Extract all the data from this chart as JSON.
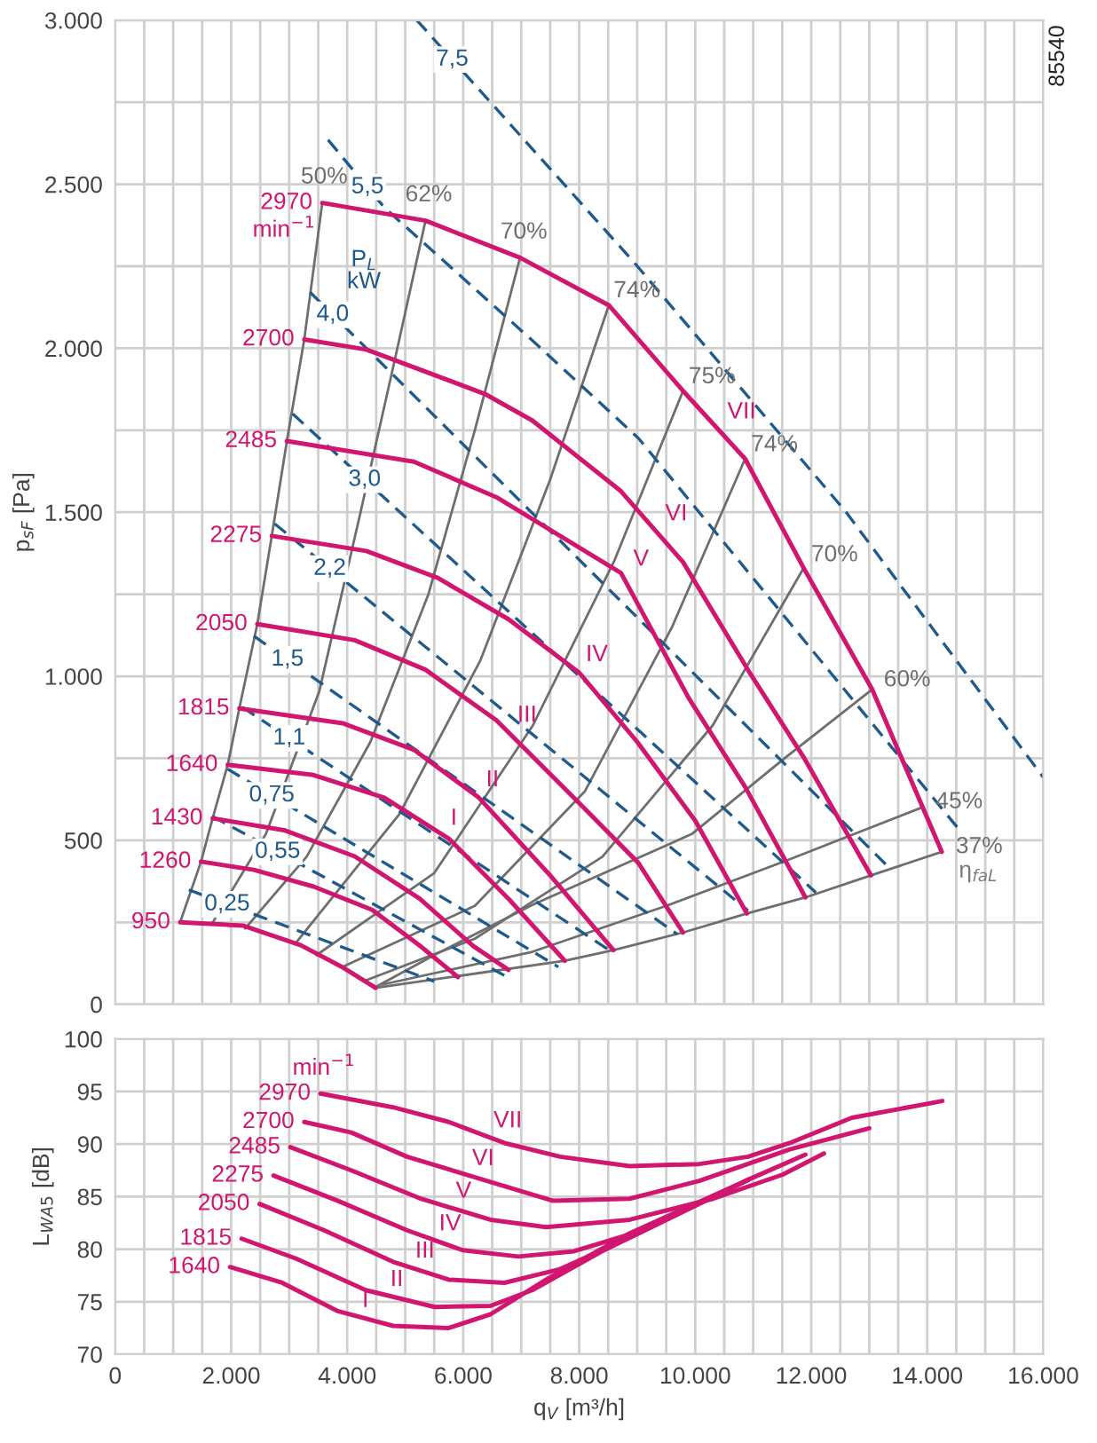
{
  "chart_data": [
    {
      "type": "line",
      "ylabel": "p$_{sF}$ [Pa]",
      "xlim": [
        0,
        16000
      ],
      "ylim": [
        0,
        3000
      ],
      "grid": true,
      "tick_labels": "y",
      "xticks": [
        {
          "value": 0,
          "label": null
        },
        {
          "value": 500,
          "label": null
        },
        {
          "value": 1000,
          "label": null
        },
        {
          "value": 1500,
          "label": null
        },
        {
          "value": 2000,
          "label": null
        },
        {
          "value": 2500,
          "label": null
        },
        {
          "value": 3000,
          "label": null
        },
        {
          "value": 3500,
          "label": null
        },
        {
          "value": 4000,
          "label": null
        },
        {
          "value": 4500,
          "label": null
        },
        {
          "value": 5000,
          "label": null
        },
        {
          "value": 5500,
          "label": null
        },
        {
          "value": 6000,
          "label": null
        },
        {
          "value": 6500,
          "label": null
        },
        {
          "value": 7000,
          "label": null
        },
        {
          "value": 7500,
          "label": null
        },
        {
          "value": 8000,
          "label": null
        },
        {
          "value": 8500,
          "label": null
        },
        {
          "value": 9000,
          "label": null
        },
        {
          "value": 9500,
          "label": null
        },
        {
          "value": 10000,
          "label": null
        },
        {
          "value": 10500,
          "label": null
        },
        {
          "value": 11000,
          "label": null
        },
        {
          "value": 11500,
          "label": null
        },
        {
          "value": 12000,
          "label": null
        },
        {
          "value": 12500,
          "label": null
        },
        {
          "value": 13000,
          "label": null
        },
        {
          "value": 13500,
          "label": null
        },
        {
          "value": 14000,
          "label": null
        },
        {
          "value": 14500,
          "label": null
        },
        {
          "value": 15000,
          "label": null
        },
        {
          "value": 15500,
          "label": null
        },
        {
          "value": 16000,
          "label": null
        }
      ],
      "yticks": [
        0,
        {
          "value": 250,
          "label": null
        },
        {
          "value": 500,
          "label": "500"
        },
        {
          "value": 750,
          "label": null
        },
        {
          "value": 1000,
          "label": "1.000"
        },
        {
          "value": 1250,
          "label": null
        },
        {
          "value": 1500,
          "label": "1.500"
        },
        {
          "value": 1750,
          "label": null
        },
        {
          "value": 2000,
          "label": "2.000"
        },
        {
          "value": 2250,
          "label": null
        },
        {
          "value": 2500,
          "label": "2.500"
        },
        {
          "value": 2750,
          "label": null
        },
        {
          "value": 3000,
          "label": "3.000"
        }
      ],
      "series": [
        {
          "name": "50%",
          "color": "#6e6e6e",
          "x": [
            1120,
            1480,
            1680,
            1940,
            2140,
            2450,
            2700,
            2960,
            3260,
            3570
          ],
          "values": [
            250,
            435,
            567,
            730,
            902,
            1159,
            1428,
            1717,
            2027,
            2443
          ]
        },
        {
          "name": "62%",
          "color": "#6e6e6e",
          "x": [
            1680,
            2600,
            3520,
            4230,
            4840,
            5350
          ],
          "values": [
            249,
            520,
            955,
            1500,
            1980,
            2389
          ]
        },
        {
          "name": "70%",
          "color": "#6e6e6e",
          "x": [
            2240,
            3300,
            4400,
            5400,
            6200,
            6980
          ],
          "values": [
            231,
            450,
            800,
            1250,
            1750,
            2276
          ]
        },
        {
          "name": "74%",
          "color": "#6e6e6e",
          "x": [
            3110,
            4900,
            6300,
            7500,
            8510
          ],
          "values": [
            186,
            580,
            1050,
            1600,
            2131
          ]
        },
        {
          "name": "75%",
          "color": "#6e6e6e",
          "x": [
            3470,
            5500,
            7200,
            8600,
            9790
          ],
          "values": [
            150,
            400,
            850,
            1350,
            1870
          ]
        },
        {
          "name": "74%",
          "color": "#6e6e6e",
          "x": [
            3920,
            6200,
            8100,
            9600,
            10860
          ],
          "values": [
            114,
            300,
            650,
            1150,
            1663
          ]
        },
        {
          "name": "70%",
          "color": "#6e6e6e",
          "x": [
            4280,
            6200,
            8400,
            10300,
            11870
          ],
          "values": [
            70,
            200,
            450,
            850,
            1330
          ]
        },
        {
          "name": "60%",
          "color": "#6e6e6e",
          "x": [
            4460,
            5500,
            7190,
            9940,
            11560,
            13050
          ],
          "values": [
            50,
            150,
            303,
            519,
            753,
            960
          ]
        },
        {
          "name": "45%",
          "color": "#6e6e6e",
          "x": [
            4600,
            7190,
            9500,
            11600,
            13910
          ],
          "values": [
            60,
            160,
            300,
            440,
            600
          ]
        },
        {
          "name": "37%",
          "color": "#6e6e6e",
          "x": [
            4490,
            7750,
            8590,
            9790,
            10890,
            11900,
            13030,
            14250
          ],
          "values": [
            50,
            133,
            165,
            219,
            277,
            326,
            393,
            465
          ]
        },
        {
          "name": "7,5",
          "color": "#1f5a8a",
          "line_style": "dashed",
          "x": [
            5200,
            5810,
            8920,
            12590,
            16000
          ],
          "values": [
            3000,
            2880,
            2267,
            1503,
            692
          ]
        },
        {
          "name": "5,5",
          "color": "#1f5a8a",
          "line_style": "dashed",
          "x": [
            3670,
            4350,
            4640,
            7190,
            9020,
            14530
          ],
          "values": [
            2635,
            2491,
            2429,
            2024,
            1726,
            537
          ]
        },
        {
          "name": "4,0",
          "color": "#1f5a8a",
          "line_style": "dashed",
          "x": [
            3360,
            3750,
            13300
          ],
          "values": [
            2171,
            2102,
            424
          ]
        },
        {
          "name": "3,0",
          "color": "#1f5a8a",
          "line_style": "dashed",
          "x": [
            3060,
            4300,
            12080
          ],
          "values": [
            1800,
            1599,
            341
          ]
        },
        {
          "name": "2,2",
          "color": "#1f5a8a",
          "line_style": "dashed",
          "x": [
            2750,
            3700,
            10910
          ],
          "values": [
            1465,
            1328,
            286
          ]
        },
        {
          "name": "1,5",
          "color": "#1f5a8a",
          "line_style": "dashed",
          "x": [
            2390,
            2970,
            9690
          ],
          "values": [
            1123,
            1051,
            214
          ]
        },
        {
          "name": "1,1",
          "color": "#1f5a8a",
          "line_style": "dashed",
          "x": [
            2190,
            3000,
            8560
          ],
          "values": [
            906,
            811,
            160
          ]
        },
        {
          "name": "0,75",
          "color": "#1f5a8a",
          "line_style": "dashed",
          "x": [
            1940,
            2700,
            7640
          ],
          "values": [
            717,
            637,
            114
          ]
        },
        {
          "name": "0,55",
          "color": "#1f5a8a",
          "line_style": "dashed",
          "x": [
            1680,
            2800,
            6730
          ],
          "values": [
            573,
            465,
            86
          ]
        },
        {
          "name": "0,25",
          "color": "#1f5a8a",
          "line_style": "dashed",
          "x": [
            1270,
            1930,
            5500
          ],
          "values": [
            349,
            305,
            70
          ]
        },
        {
          "name": "950",
          "color": "#d1166f",
          "x": [
            1120,
            2200,
            3200,
            3900,
            4490
          ],
          "values": [
            250,
            240,
            180,
            115,
            50
          ]
        },
        {
          "name": "1260",
          "color": "#d1166f",
          "x": [
            1480,
            2390,
            3420,
            4430,
            5250,
            5910
          ],
          "values": [
            435,
            410,
            359,
            288,
            179,
            83
          ]
        },
        {
          "name": "1430",
          "color": "#d1166f",
          "x": [
            1680,
            2910,
            4130,
            5250,
            6170,
            6780
          ],
          "values": [
            567,
            531,
            451,
            322,
            178,
            105
          ]
        },
        {
          "name": "1640",
          "color": "#d1166f",
          "x": [
            1940,
            3420,
            4640,
            5760,
            6780,
            7750
          ],
          "values": [
            730,
            699,
            630,
            504,
            322,
            133
          ]
        },
        {
          "name": "1815",
          "color": "#d1166f",
          "x": [
            2140,
            3920,
            5150,
            6270,
            7490,
            8590
          ],
          "values": [
            902,
            857,
            776,
            630,
            395,
            165
          ]
        },
        {
          "name": "2050",
          "color": "#d1166f",
          "x": [
            2450,
            4130,
            5350,
            6570,
            8000,
            9020,
            9790
          ],
          "values": [
            1159,
            1110,
            1020,
            866,
            613,
            431,
            219
          ]
        },
        {
          "name": "2275",
          "color": "#d1166f",
          "x": [
            2700,
            4330,
            5560,
            6780,
            8000,
            9000,
            10000,
            10890
          ],
          "values": [
            1428,
            1382,
            1300,
            1174,
            1011,
            800,
            560,
            277
          ]
        },
        {
          "name": "2485",
          "color": "#d1166f",
          "x": [
            2960,
            5150,
            6570,
            8720,
            9890,
            10860,
            11900
          ],
          "values": [
            1717,
            1654,
            1546,
            1315,
            933,
            663,
            326
          ]
        },
        {
          "name": "2700",
          "color": "#d1166f",
          "x": [
            3260,
            4330,
            6370,
            7190,
            8720,
            9790,
            10960,
            11870,
            13030
          ],
          "values": [
            2027,
            1996,
            1861,
            1780,
            1564,
            1348,
            1005,
            753,
            393
          ]
        },
        {
          "name": "2970",
          "color": "#d1166f",
          "x": [
            3570,
            5350,
            6980,
            8510,
            9790,
            10860,
            11870,
            13050,
            14250
          ],
          "values": [
            2443,
            2389,
            2276,
            2131,
            1870,
            1663,
            1330,
            960,
            465
          ]
        }
      ],
      "annotations": [
        "85540",
        "min$^{−1}$",
        "P$_{L}$\nkW",
        "η$_{faL}$",
        {
          "text": "I",
          "x": 5570,
          "y": 525
        },
        {
          "text": "II",
          "x": 6180,
          "y": 642
        },
        {
          "text": "III",
          "x": 6720,
          "y": 839
        },
        {
          "text": "IV",
          "x": 7900,
          "y": 1024
        },
        {
          "text": "V",
          "x": 8720,
          "y": 1315
        },
        {
          "text": "VI",
          "x": 9270,
          "y": 1453
        },
        {
          "text": "VII",
          "x": 10340,
          "y": 1764
        }
      ]
    },
    {
      "type": "line",
      "xlabel": "q$_{V}$ [m³/h]",
      "ylabel": "L$_{WA5}$ [dB]",
      "xlim": [
        0,
        16000
      ],
      "ylim": [
        70,
        100
      ],
      "grid": true,
      "xticks": [
        0,
        {
          "value": 500,
          "label": null
        },
        {
          "value": 1000,
          "label": null
        },
        {
          "value": 1500,
          "label": null
        },
        {
          "value": 2000,
          "label": "2.000"
        },
        {
          "value": 2500,
          "label": null
        },
        {
          "value": 3000,
          "label": null
        },
        {
          "value": 3500,
          "label": null
        },
        {
          "value": 4000,
          "label": "4.000"
        },
        {
          "value": 4500,
          "label": null
        },
        {
          "value": 5000,
          "label": null
        },
        {
          "value": 5500,
          "label": null
        },
        {
          "value": 6000,
          "label": "6.000"
        },
        {
          "value": 6500,
          "label": null
        },
        {
          "value": 7000,
          "label": null
        },
        {
          "value": 7500,
          "label": null
        },
        {
          "value": 8000,
          "label": "8.000"
        },
        {
          "value": 8500,
          "label": null
        },
        {
          "value": 9000,
          "label": null
        },
        {
          "value": 9500,
          "label": null
        },
        {
          "value": 10000,
          "label": "10.000"
        },
        {
          "value": 10500,
          "label": null
        },
        {
          "value": 11000,
          "label": null
        },
        {
          "value": 11500,
          "label": null
        },
        {
          "value": 12000,
          "label": "12.000"
        },
        {
          "value": 12500,
          "label": null
        },
        {
          "value": 13000,
          "label": null
        },
        {
          "value": 13500,
          "label": null
        },
        {
          "value": 14000,
          "label": "14.000"
        },
        {
          "value": 14500,
          "label": null
        },
        {
          "value": 15000,
          "label": null
        },
        {
          "value": 15500,
          "label": null
        },
        {
          "value": 16000,
          "label": "16.000"
        }
      ],
      "yticks": [
        70,
        75,
        80,
        85,
        90,
        95,
        100
      ],
      "series": [
        {
          "name": "1640",
          "color": "#d1166f",
          "x": [
            1980,
            2880,
            3840,
            4790,
            5750,
            6470,
            7430,
            8870,
            10910
          ],
          "values": [
            78.3,
            76.8,
            74.1,
            72.7,
            72.5,
            73.8,
            77.1,
            81.5,
            86.6
          ]
        },
        {
          "name": "1815",
          "color": "#d1166f",
          "x": [
            2180,
            3120,
            4320,
            5510,
            6470,
            7190,
            8390,
            10910
          ],
          "values": [
            81.0,
            79.1,
            76.1,
            74.5,
            74.6,
            76.1,
            79.8,
            86.6
          ]
        },
        {
          "name": "2050",
          "color": "#d1166f",
          "x": [
            2490,
            3600,
            4790,
            5750,
            6710,
            7670,
            8870,
            10910
          ],
          "values": [
            84.3,
            81.8,
            78.8,
            77.1,
            76.8,
            78.1,
            81.1,
            86.6
          ]
        },
        {
          "name": "2275",
          "color": "#d1166f",
          "x": [
            2730,
            3840,
            5030,
            5990,
            6950,
            7910,
            9110,
            10910,
            11900
          ],
          "values": [
            87.0,
            84.6,
            81.8,
            79.9,
            79.3,
            79.8,
            81.8,
            86.6,
            89.0
          ]
        },
        {
          "name": "2485",
          "color": "#d1166f",
          "x": [
            3020,
            4070,
            5270,
            6470,
            7430,
            8870,
            10310,
            11510,
            12220
          ],
          "values": [
            89.7,
            87.5,
            84.8,
            82.8,
            82.1,
            82.8,
            84.8,
            87.1,
            89.1
          ]
        },
        {
          "name": "2700",
          "color": "#d1166f",
          "x": [
            3260,
            4070,
            5030,
            6230,
            7550,
            8870,
            10070,
            11630,
            13000
          ],
          "values": [
            92.1,
            91.1,
            88.8,
            86.8,
            84.6,
            84.8,
            86.5,
            89.5,
            91.5
          ]
        },
        {
          "name": "2970",
          "color": "#d1166f",
          "x": [
            3540,
            4790,
            5750,
            6710,
            7670,
            8870,
            10070,
            10910,
            11630,
            12700,
            14260
          ],
          "values": [
            94.8,
            93.5,
            92.1,
            90.1,
            88.8,
            87.9,
            88.1,
            88.8,
            90.1,
            92.5,
            94.1
          ]
        }
      ],
      "annotations": [
        "min$^{−1}$",
        {
          "text": "I",
          "x": 4045,
          "y": 73.8
        },
        {
          "text": "II",
          "x": 4530,
          "y": 75.8
        },
        {
          "text": "III",
          "x": 4960,
          "y": 78.5
        },
        {
          "text": "IV",
          "x": 5370,
          "y": 81.1
        },
        {
          "text": "V",
          "x": 5660,
          "y": 84.2
        },
        {
          "text": "VI",
          "x": 5940,
          "y": 87.3
        },
        {
          "text": "VII",
          "x": 6310,
          "y": 90.9
        }
      ]
    }
  ]
}
